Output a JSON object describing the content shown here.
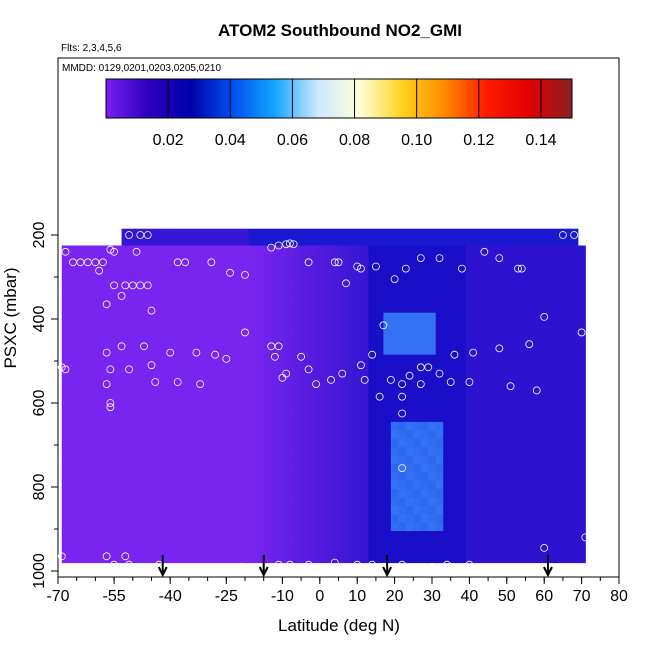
{
  "chart_data": {
    "type": "heatmap",
    "title": "ATOM2 Southbound NO2_GMI",
    "subtitle_flights": "Flts: 2,3,4,5,6",
    "subtitle_dates": "MMDD: 0129,0201,0203,0205,0210",
    "xlabel": "Latitude (deg N)",
    "ylabel": "PSXC (mbar)",
    "xlim": [
      -70,
      80
    ],
    "ylim": [
      1000,
      0
    ],
    "x_ticks": [
      "-70",
      "-55",
      "-40",
      "-25",
      "-10",
      "0",
      "10",
      "20",
      "30",
      "40",
      "50",
      "60",
      "70",
      "80"
    ],
    "x_tick_values": [
      -70,
      -55,
      -40,
      -25,
      -10,
      0,
      10,
      20,
      30,
      40,
      50,
      60,
      70,
      80
    ],
    "y_ticks": [
      "200",
      "400",
      "600",
      "800",
      "1000"
    ],
    "y_tick_values": [
      200,
      400,
      600,
      800,
      1000
    ],
    "colorbar": {
      "range": [
        0,
        0.15
      ],
      "tick_labels": [
        "0.02",
        "0.04",
        "0.06",
        "0.08",
        "0.10",
        "0.12",
        "0.14"
      ],
      "tick_values": [
        0.02,
        0.04,
        0.06,
        0.08,
        0.1,
        0.12,
        0.14
      ],
      "colors": [
        "#7a1ff2",
        "#2d00c0",
        "#0000aa",
        "#0050f0",
        "#16a6ff",
        "#cde8ff",
        "#ffffd6",
        "#ffd21e",
        "#ff8a00",
        "#ff1a00",
        "#e00000",
        "#8a2222"
      ]
    },
    "field_colors": {
      "low": "#7a24f0",
      "mid": "#1a0fc8",
      "blue": "#1a30e6",
      "bright": "#3d8ef7"
    },
    "samples_layers": [
      {
        "p_top": 185,
        "p_bot": 225,
        "x_from": -53,
        "x_to": 69
      },
      {
        "p_top": 225,
        "p_bot": 980,
        "x_from": -69,
        "x_to": 71
      }
    ],
    "sample_points": [
      {
        "x": -68,
        "p": 240
      },
      {
        "x": -66,
        "p": 265
      },
      {
        "x": -64,
        "p": 265
      },
      {
        "x": -62,
        "p": 265
      },
      {
        "x": -60,
        "p": 265
      },
      {
        "x": -58,
        "p": 265
      },
      {
        "x": -56,
        "p": 235
      },
      {
        "x": -55,
        "p": 240
      },
      {
        "x": -51,
        "p": 200
      },
      {
        "x": -48,
        "p": 200
      },
      {
        "x": -46,
        "p": 200
      },
      {
        "x": -49,
        "p": 240
      },
      {
        "x": -38,
        "p": 265
      },
      {
        "x": -36,
        "p": 265
      },
      {
        "x": -29,
        "p": 265
      },
      {
        "x": -24,
        "p": 290
      },
      {
        "x": -20,
        "p": 295
      },
      {
        "x": -13,
        "p": 230
      },
      {
        "x": -11,
        "p": 225
      },
      {
        "x": -9,
        "p": 222
      },
      {
        "x": -8,
        "p": 220
      },
      {
        "x": -7,
        "p": 222
      },
      {
        "x": -3,
        "p": 265
      },
      {
        "x": 4,
        "p": 265
      },
      {
        "x": 5,
        "p": 265
      },
      {
        "x": 7,
        "p": 315
      },
      {
        "x": 10,
        "p": 275
      },
      {
        "x": 11,
        "p": 280
      },
      {
        "x": 15,
        "p": 275
      },
      {
        "x": 20,
        "p": 305
      },
      {
        "x": 23,
        "p": 280
      },
      {
        "x": 27,
        "p": 255
      },
      {
        "x": 32,
        "p": 255
      },
      {
        "x": 38,
        "p": 280
      },
      {
        "x": 44,
        "p": 240
      },
      {
        "x": 48,
        "p": 255
      },
      {
        "x": 53,
        "p": 280
      },
      {
        "x": 54,
        "p": 280
      },
      {
        "x": 65,
        "p": 200
      },
      {
        "x": 68,
        "p": 200
      },
      {
        "x": -59,
        "p": 285
      },
      {
        "x": -55,
        "p": 320
      },
      {
        "x": -52,
        "p": 320
      },
      {
        "x": -50,
        "p": 320
      },
      {
        "x": -48,
        "p": 320
      },
      {
        "x": -46,
        "p": 320
      },
      {
        "x": -57,
        "p": 365
      },
      {
        "x": -53,
        "p": 345
      },
      {
        "x": -45,
        "p": 380
      },
      {
        "x": -20,
        "p": 432
      },
      {
        "x": 17,
        "p": 415
      },
      {
        "x": 60,
        "p": 395
      },
      {
        "x": 70,
        "p": 432
      },
      {
        "x": -69,
        "p": 515
      },
      {
        "x": -68,
        "p": 520
      },
      {
        "x": -57,
        "p": 480
      },
      {
        "x": -53,
        "p": 465
      },
      {
        "x": -47,
        "p": 465
      },
      {
        "x": -45,
        "p": 510
      },
      {
        "x": -40,
        "p": 480
      },
      {
        "x": -33,
        "p": 480
      },
      {
        "x": -28,
        "p": 485
      },
      {
        "x": -25,
        "p": 495
      },
      {
        "x": -13,
        "p": 465
      },
      {
        "x": -11,
        "p": 465
      },
      {
        "x": -12,
        "p": 490
      },
      {
        "x": -9,
        "p": 530
      },
      {
        "x": -5,
        "p": 490
      },
      {
        "x": -3,
        "p": 520
      },
      {
        "x": 3,
        "p": 545
      },
      {
        "x": 6,
        "p": 530
      },
      {
        "x": 11,
        "p": 510
      },
      {
        "x": 14,
        "p": 485
      },
      {
        "x": 12,
        "p": 545
      },
      {
        "x": 19,
        "p": 545
      },
      {
        "x": 22,
        "p": 555
      },
      {
        "x": 24,
        "p": 535
      },
      {
        "x": 27,
        "p": 515
      },
      {
        "x": 29,
        "p": 515
      },
      {
        "x": 32,
        "p": 530
      },
      {
        "x": 36,
        "p": 485
      },
      {
        "x": 41,
        "p": 480
      },
      {
        "x": 48,
        "p": 470
      },
      {
        "x": 51,
        "p": 560
      },
      {
        "x": 56,
        "p": 460
      },
      {
        "x": 58,
        "p": 570
      },
      {
        "x": -57,
        "p": 555
      },
      {
        "x": -56,
        "p": 520
      },
      {
        "x": -51,
        "p": 520
      },
      {
        "x": -44,
        "p": 550
      },
      {
        "x": -38,
        "p": 550
      },
      {
        "x": -32,
        "p": 555
      },
      {
        "x": -10,
        "p": 540
      },
      {
        "x": -1,
        "p": 555
      },
      {
        "x": 16,
        "p": 585
      },
      {
        "x": 22,
        "p": 585
      },
      {
        "x": 22,
        "p": 625
      },
      {
        "x": 27,
        "p": 555
      },
      {
        "x": 35,
        "p": 550
      },
      {
        "x": 40,
        "p": 550
      },
      {
        "x": -56,
        "p": 610
      },
      {
        "x": -56,
        "p": 600
      },
      {
        "x": 22,
        "p": 755
      },
      {
        "x": 60,
        "p": 945
      },
      {
        "x": 71,
        "p": 920
      },
      {
        "x": -69,
        "p": 965
      },
      {
        "x": -57,
        "p": 965
      },
      {
        "x": -55,
        "p": 985
      },
      {
        "x": -52,
        "p": 965
      },
      {
        "x": -51,
        "p": 985
      },
      {
        "x": -43,
        "p": 985
      },
      {
        "x": -33,
        "p": 995
      },
      {
        "x": -21,
        "p": 990
      },
      {
        "x": -11,
        "p": 985
      },
      {
        "x": -8,
        "p": 985
      },
      {
        "x": -3,
        "p": 985
      },
      {
        "x": 4,
        "p": 980
      },
      {
        "x": 10,
        "p": 985
      },
      {
        "x": 14,
        "p": 985
      },
      {
        "x": 17,
        "p": 990
      },
      {
        "x": 22,
        "p": 985
      },
      {
        "x": 25,
        "p": 995
      },
      {
        "x": 30,
        "p": 990
      },
      {
        "x": 34,
        "p": 985
      },
      {
        "x": 40,
        "p": 985
      },
      {
        "x": 43,
        "p": 1000
      },
      {
        "x": 50,
        "p": 1000
      }
    ],
    "arrows_lat": [
      -42,
      -15,
      18,
      61
    ],
    "arrows_p": [
      1000,
      1000,
      1000,
      1000
    ]
  }
}
